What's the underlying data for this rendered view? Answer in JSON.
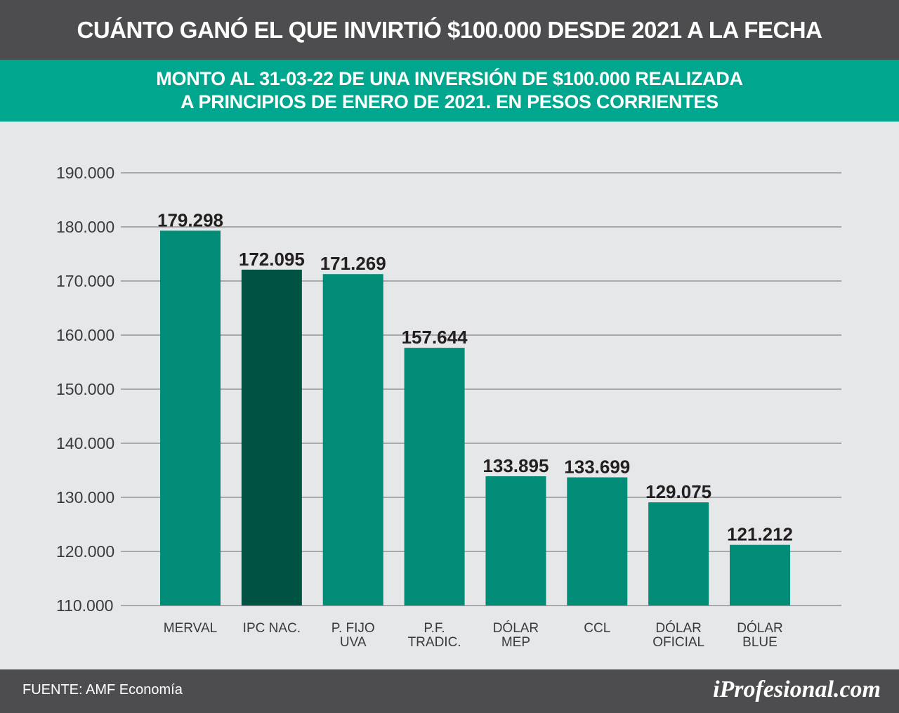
{
  "header": {
    "title": "CUÁNTO GANÓ EL QUE INVIRTIÓ $100.000 DESDE 2021 A LA FECHA",
    "subtitle_line1": "MONTO AL 31-03-22 DE UNA INVERSIÓN DE $100.000 REALIZADA",
    "subtitle_line2": "A PRINCIPIOS DE ENERO DE 2021. EN PESOS CORRIENTES"
  },
  "footer": {
    "source": "FUENTE: AMF Economía",
    "brand": "iProfesional.com"
  },
  "colors": {
    "header_bg": "#4d4d4f",
    "subheader_bg": "#00a78e",
    "bar": "#008c76",
    "bar_highlight": "#005243",
    "background": "#e6e7e8",
    "grid": "#a7a9ac"
  },
  "chart_data": {
    "type": "bar",
    "categories": [
      [
        "MERVAL"
      ],
      [
        "IPC NAC."
      ],
      [
        "P. FIJO",
        "UVA"
      ],
      [
        "P.F.",
        "TRADIC."
      ],
      [
        "DÓLAR",
        "MEP"
      ],
      [
        "CCL"
      ],
      [
        "DÓLAR",
        "OFICIAL"
      ],
      [
        "DÓLAR",
        "BLUE"
      ]
    ],
    "values": [
      179298,
      172095,
      171269,
      157644,
      133895,
      133699,
      129075,
      121212
    ],
    "value_labels": [
      "179.298",
      "172.095",
      "171.269",
      "157.644",
      "133.895",
      "133.699",
      "129.075",
      "121.212"
    ],
    "highlight_index": 1,
    "yticks": [
      110000,
      120000,
      130000,
      140000,
      150000,
      160000,
      170000,
      180000,
      190000
    ],
    "ytick_labels": [
      "110.000",
      "120.000",
      "130.000",
      "140.000",
      "150.000",
      "160.000",
      "170.000",
      "180.000",
      "190.000"
    ],
    "ylim": [
      110000,
      190000
    ],
    "grid": true,
    "legend": false
  }
}
